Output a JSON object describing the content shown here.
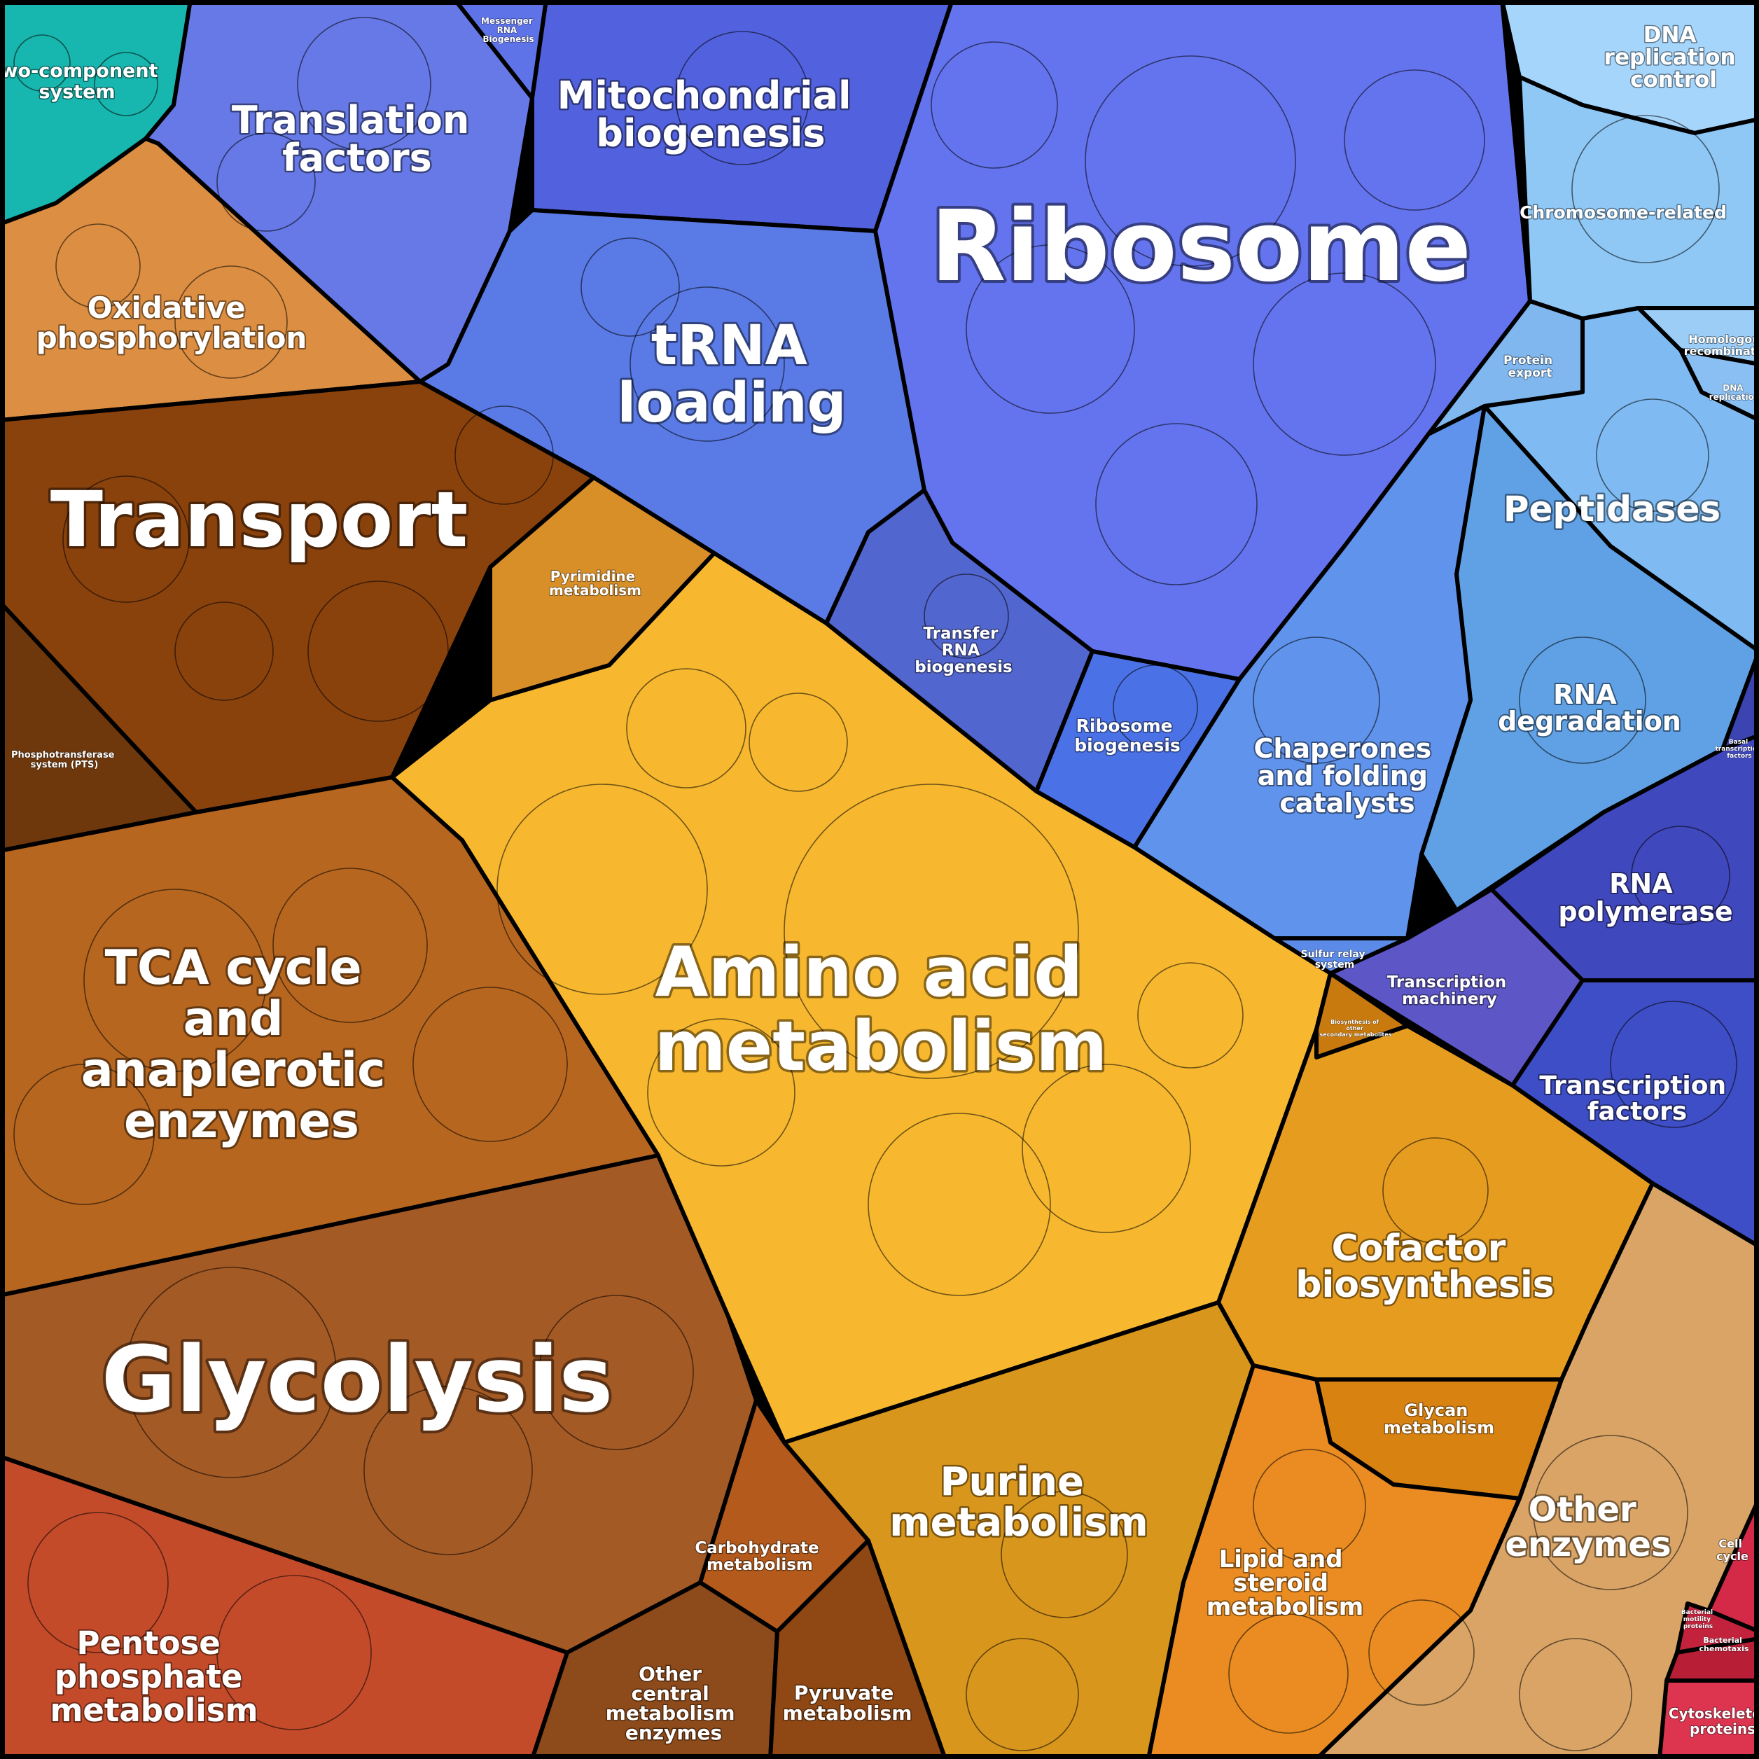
{
  "diagram": {
    "type": "voronoi-treemap",
    "colors": {
      "blue_family": "#5b6fe6",
      "light_blue_family": "#8fc6f5",
      "orange_family": "#d98a2b",
      "brown_family": "#8a4210",
      "yellow_family": "#f6b92d",
      "red_family": "#d8364c",
      "teal_family": "#18b7b0",
      "border": "#000000",
      "label": "#ffffff"
    },
    "regions": [
      {
        "key": "two_component",
        "label": "Two-component system",
        "color": "#17b6ae"
      },
      {
        "key": "translation",
        "label": "Translation factors",
        "color": "#6679e6"
      },
      {
        "key": "mrna",
        "label": "Messenger RNA Biogenesis",
        "color": "#5f73e8"
      },
      {
        "key": "mito",
        "label": "Mitochondrial biogenesis",
        "color": "#5262de"
      },
      {
        "key": "ribosome",
        "label": "Ribosome",
        "color": "#6474ef"
      },
      {
        "key": "trna_loading",
        "label": "tRNA loading",
        "color": "#5a7ae6"
      },
      {
        "key": "dna_rep",
        "label": "DNA replication control",
        "color": "#a6d5fb"
      },
      {
        "key": "chromosome",
        "label": "Chromosome-related",
        "color": "#8fc7f5"
      },
      {
        "key": "homologous",
        "label": "Homologous recombination",
        "color": "#9bcdf7"
      },
      {
        "key": "dna_replication",
        "label": "DNA replication",
        "color": "#89bff2"
      },
      {
        "key": "protein_export",
        "label": "Protein export",
        "color": "#7fb7ee"
      },
      {
        "key": "peptidases",
        "label": "Peptidases",
        "color": "#7fbbf2"
      },
      {
        "key": "rna_deg",
        "label": "RNA degradation",
        "color": "#5fa1e4"
      },
      {
        "key": "chaperones",
        "label": "Chaperones and folding catalysts",
        "color": "#5f93ec"
      },
      {
        "key": "ribosome_biog",
        "label": "Ribosome biogenesis",
        "color": "#4a72e6"
      },
      {
        "key": "transfer_rna",
        "label": "Transfer RNA biogenesis",
        "color": "#5266cf"
      },
      {
        "key": "rna_pol",
        "label": "RNA polymerase",
        "color": "#4048bd"
      },
      {
        "key": "basal_tf",
        "label": "Basal transcription factors",
        "color": "#3b44b0"
      },
      {
        "key": "transcription_machinery",
        "label": "Transcription machinery",
        "color": "#5d56c6"
      },
      {
        "key": "tfs",
        "label": "Transcription factors",
        "color": "#3e4ec6"
      },
      {
        "key": "sulfur_relay",
        "label": "Sulfur relay system",
        "color": "#5b8ae8"
      },
      {
        "key": "oxphos",
        "label": "Oxidative phosphorylation",
        "color": "#dc8e42"
      },
      {
        "key": "transport",
        "label": "Transport",
        "color": "#8a420d"
      },
      {
        "key": "pts",
        "label": "Phosphotransferase system (PTS)",
        "color": "#6f380c"
      },
      {
        "key": "pyrimidine",
        "label": "Pyrimidine metabolism",
        "color": "#d88f28"
      },
      {
        "key": "amino",
        "label": "Amino acid metabolism",
        "color": "#f7b82f"
      },
      {
        "key": "tca",
        "label": "TCA cycle and anaplerotic enzymes",
        "color": "#b7661f"
      },
      {
        "key": "glycolysis",
        "label": "Glycolysis",
        "color": "#a45a25"
      },
      {
        "key": "pentose",
        "label": "Pentose phosphate metabolism",
        "color": "#c44b2a"
      },
      {
        "key": "carbohydrate",
        "label": "Carbohydrate metabolism",
        "color": "#b35a1c"
      },
      {
        "key": "other_central",
        "label": "Other central metabolism enzymes",
        "color": "#8d4a1a"
      },
      {
        "key": "pyruvate",
        "label": "Pyruvate metabolism",
        "color": "#8f4713"
      },
      {
        "key": "purine",
        "label": "Purine metabolism",
        "color": "#d9961c"
      },
      {
        "key": "cofactor",
        "label": "Cofactor biosynthesis",
        "color": "#e69c1f"
      },
      {
        "key": "glycan",
        "label": "Glycan metabolism",
        "color": "#d88211"
      },
      {
        "key": "lipid",
        "label": "Lipid and steroid metabolism",
        "color": "#ea8c22"
      },
      {
        "key": "other_sec",
        "label": "Biosynthesis of other secondary metabolites",
        "color": "#c97a0f"
      },
      {
        "key": "other_enzymes",
        "label": "Other enzymes",
        "color": "#d9a466"
      },
      {
        "key": "cell_cycle",
        "label": "Cell cycle",
        "color": "#d42a48"
      },
      {
        "key": "motility",
        "label": "Bacterial motility proteins",
        "color": "#c3223d"
      },
      {
        "key": "chemotaxis",
        "label": "Bacterial chemotaxis",
        "color": "#b81e36"
      },
      {
        "key": "cytoskeleton",
        "label": "Cytoskeleton proteins",
        "color": "#dd3550"
      }
    ]
  }
}
